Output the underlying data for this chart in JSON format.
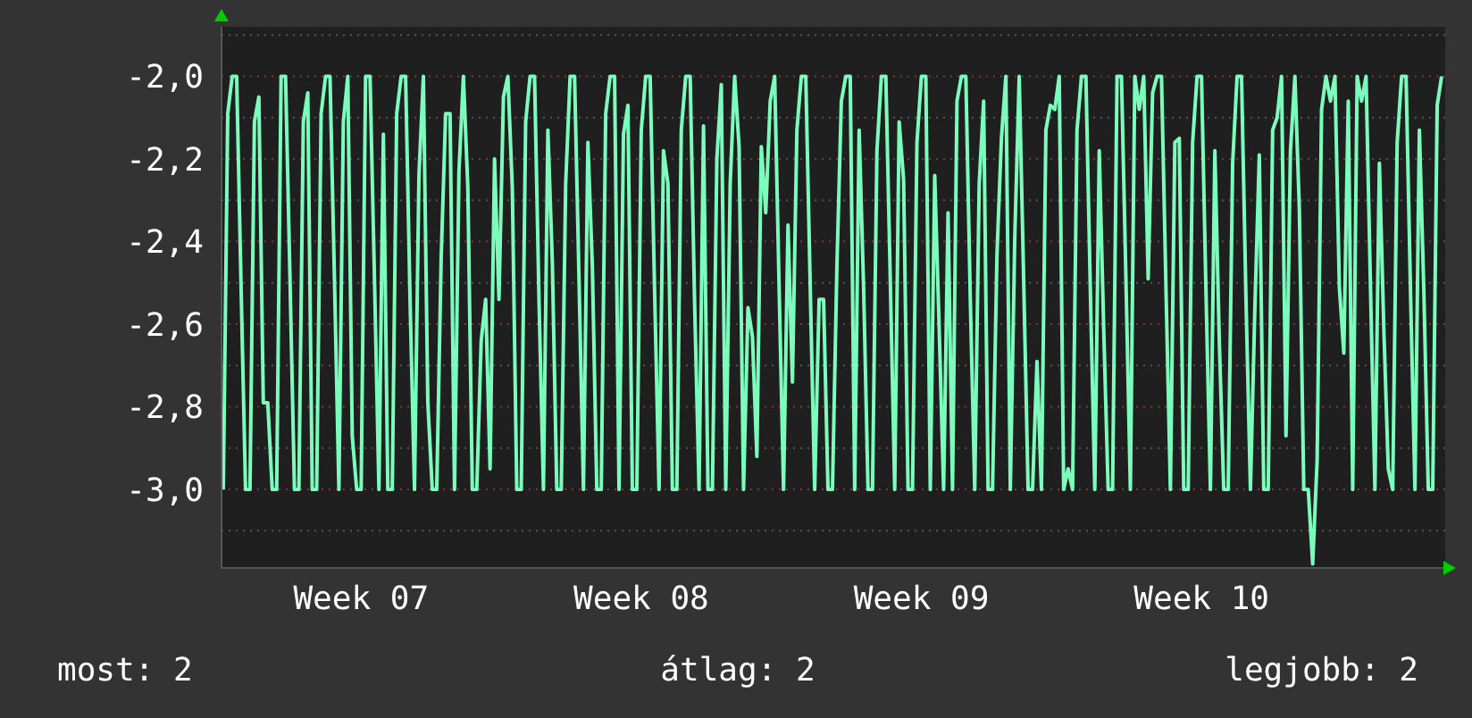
{
  "chart_data": {
    "type": "line",
    "categories": [
      null,
      null,
      null,
      null,
      null,
      null,
      null,
      null,
      null,
      null,
      null,
      null,
      null,
      null,
      null,
      null,
      null,
      null,
      null,
      null,
      null,
      null,
      null,
      null,
      null,
      null,
      null,
      null,
      null,
      null,
      null,
      "Week 07",
      null,
      null,
      null,
      null,
      null,
      null,
      null,
      null,
      null,
      null,
      null,
      null,
      null,
      null,
      null,
      null,
      null,
      null,
      null,
      null,
      null,
      null,
      null,
      null,
      null,
      null,
      null,
      null,
      null,
      null,
      null,
      null,
      null,
      null,
      null,
      null,
      null,
      null,
      null,
      null,
      null,
      null,
      null,
      null,
      null,
      null,
      null,
      null,
      null,
      null,
      null,
      null,
      null,
      null,
      null,
      null,
      null,
      null,
      null,
      null,
      null,
      null,
      "Week 08",
      null,
      null,
      null,
      null,
      null,
      null,
      null,
      null,
      null,
      null,
      null,
      null,
      null,
      null,
      null,
      null,
      null,
      null,
      null,
      null,
      null,
      null,
      null,
      null,
      null,
      null,
      null,
      null,
      null,
      null,
      null,
      null,
      null,
      null,
      null,
      null,
      null,
      null,
      null,
      null,
      null,
      null,
      null,
      null,
      null,
      null,
      null,
      null,
      null,
      null,
      null,
      null,
      null,
      null,
      null,
      null,
      null,
      null,
      null,
      null,
      null,
      null,
      "Week 09",
      null,
      null,
      null,
      null,
      null,
      null,
      null,
      null,
      null,
      null,
      null,
      null,
      null,
      null,
      null,
      null,
      null,
      null,
      null,
      null,
      null,
      null,
      null,
      null,
      null,
      null,
      null,
      null,
      null,
      null,
      null,
      null,
      null,
      null,
      null,
      null,
      null,
      null,
      null,
      null,
      null,
      null,
      null,
      null,
      null,
      null,
      null,
      null,
      null,
      null,
      null,
      null,
      null,
      null,
      null,
      null,
      null,
      null,
      null,
      null,
      null,
      null,
      "Week 10",
      null,
      null,
      null,
      null,
      null,
      null,
      null,
      null,
      null,
      null,
      null,
      null,
      null,
      null,
      null,
      null,
      null,
      null,
      null,
      null,
      null,
      null,
      null,
      null,
      null,
      null,
      null,
      null,
      null,
      null,
      null,
      null,
      null,
      null,
      null,
      null,
      null,
      null,
      null,
      null,
      null,
      null,
      null,
      null,
      null,
      null,
      null,
      null,
      null,
      null,
      null,
      null,
      null,
      null
    ],
    "ylim": [
      -3.19,
      -1.88
    ],
    "yticks": [
      {
        "value": -3.1,
        "label": null
      },
      {
        "value": -3.0,
        "label": "-3,0"
      },
      {
        "value": -2.9,
        "label": null
      },
      {
        "value": -2.8,
        "label": "-2,8"
      },
      {
        "value": -2.7,
        "label": null
      },
      {
        "value": -2.6,
        "label": "-2,6"
      },
      {
        "value": -2.5,
        "label": null
      },
      {
        "value": -2.4,
        "label": "-2,4"
      },
      {
        "value": -2.3,
        "label": null
      },
      {
        "value": -2.2,
        "label": "-2,2"
      },
      {
        "value": -2.1,
        "label": null
      },
      {
        "value": -2.0,
        "label": "-2,0"
      },
      {
        "value": -1.9,
        "label": null
      }
    ],
    "grid": "y",
    "line_style": "solid",
    "annotations": [
      "most: 2",
      "átlag: 2",
      "legjobb: 2"
    ],
    "series": [
      {
        "color": "#7cfcbc",
        "values": [
          -3,
          -2.09,
          -2,
          -2,
          -2.51,
          -3,
          -3,
          -2.11,
          -2.05,
          -2.79,
          -2.79,
          -3,
          -3,
          -2,
          -2,
          -2.49,
          -3,
          -3,
          -2.11,
          -2.04,
          -3,
          -3,
          -2.09,
          -2,
          -2,
          -2.49,
          -3,
          -2.11,
          -2,
          -2.87,
          -3,
          -3,
          -2,
          -2,
          -2.49,
          -3,
          -2.14,
          -3,
          -3,
          -2.09,
          -2,
          -2,
          -2.54,
          -3,
          -2.24,
          -2,
          -2.79,
          -3,
          -3,
          -2.44,
          -2.09,
          -2.09,
          -3,
          -2.23,
          -2,
          -2.27,
          -3,
          -3,
          -2.64,
          -2.54,
          -2.95,
          -2.2,
          -2.54,
          -2.05,
          -2,
          -2.27,
          -3,
          -3,
          -2.11,
          -2,
          -2,
          -2.54,
          -3,
          -2.13,
          -2.45,
          -3,
          -3,
          -2.26,
          -2,
          -2,
          -2.49,
          -3,
          -2.16,
          -2.46,
          -3,
          -3,
          -2.09,
          -2,
          -2,
          -3,
          -2.14,
          -2.07,
          -3,
          -3,
          -2.13,
          -2,
          -2,
          -2.52,
          -3,
          -2.18,
          -2.26,
          -3,
          -3,
          -2.13,
          -2,
          -2,
          -2.55,
          -3,
          -2.12,
          -3,
          -3,
          -2.2,
          -2.02,
          -3,
          -2.26,
          -2,
          -2.17,
          -3,
          -2.56,
          -2.63,
          -2.92,
          -2.17,
          -2.33,
          -2.06,
          -2,
          -2.51,
          -3,
          -2.36,
          -2.74,
          -2.13,
          -2,
          -2,
          -2.51,
          -3,
          -2.54,
          -2.54,
          -3,
          -3,
          -2.46,
          -2.06,
          -2,
          -2,
          -3,
          -2.13,
          -2.51,
          -3,
          -3,
          -2.18,
          -2,
          -2,
          -2.49,
          -3,
          -2.11,
          -2.25,
          -3,
          -3,
          -2.16,
          -2,
          -2,
          -3,
          -2.24,
          -2.61,
          -3,
          -2.33,
          -3,
          -2.06,
          -2,
          -2,
          -2.54,
          -3,
          -2.26,
          -2.06,
          -3,
          -3,
          -2.43,
          -2.15,
          -2,
          -3,
          -2.39,
          -2,
          -2.49,
          -3,
          -3,
          -2.69,
          -3,
          -2.13,
          -2.07,
          -2.08,
          -2,
          -3,
          -2.95,
          -3,
          -2.13,
          -2,
          -2,
          -2.52,
          -3,
          -2.18,
          -2.61,
          -3,
          -3,
          -2,
          -2,
          -2.49,
          -3,
          -2,
          -2.08,
          -2,
          -2.49,
          -2.04,
          -2,
          -2,
          -2.51,
          -3,
          -2.16,
          -2.15,
          -3,
          -3,
          -2.16,
          -2,
          -2,
          -2.52,
          -3,
          -2.18,
          -2.64,
          -3,
          -3,
          -2.21,
          -2,
          -2,
          -2.54,
          -3,
          -2.56,
          -2.19,
          -3,
          -3,
          -2.13,
          -2.1,
          -2,
          -2.87,
          -2.18,
          -2,
          -2.32,
          -3,
          -3,
          -3.18,
          -2.93,
          -2.08,
          -2,
          -2.06,
          -2,
          -2.51,
          -2.67,
          -2.06,
          -3,
          -2,
          -2.06,
          -2,
          -2.51,
          -3,
          -2.21,
          -2.61,
          -2.95,
          -3,
          -2.16,
          -2,
          -2,
          -2.52,
          -3,
          -2.13,
          -2.52,
          -3,
          -3,
          -2.07,
          -2
        ]
      }
    ]
  }
}
